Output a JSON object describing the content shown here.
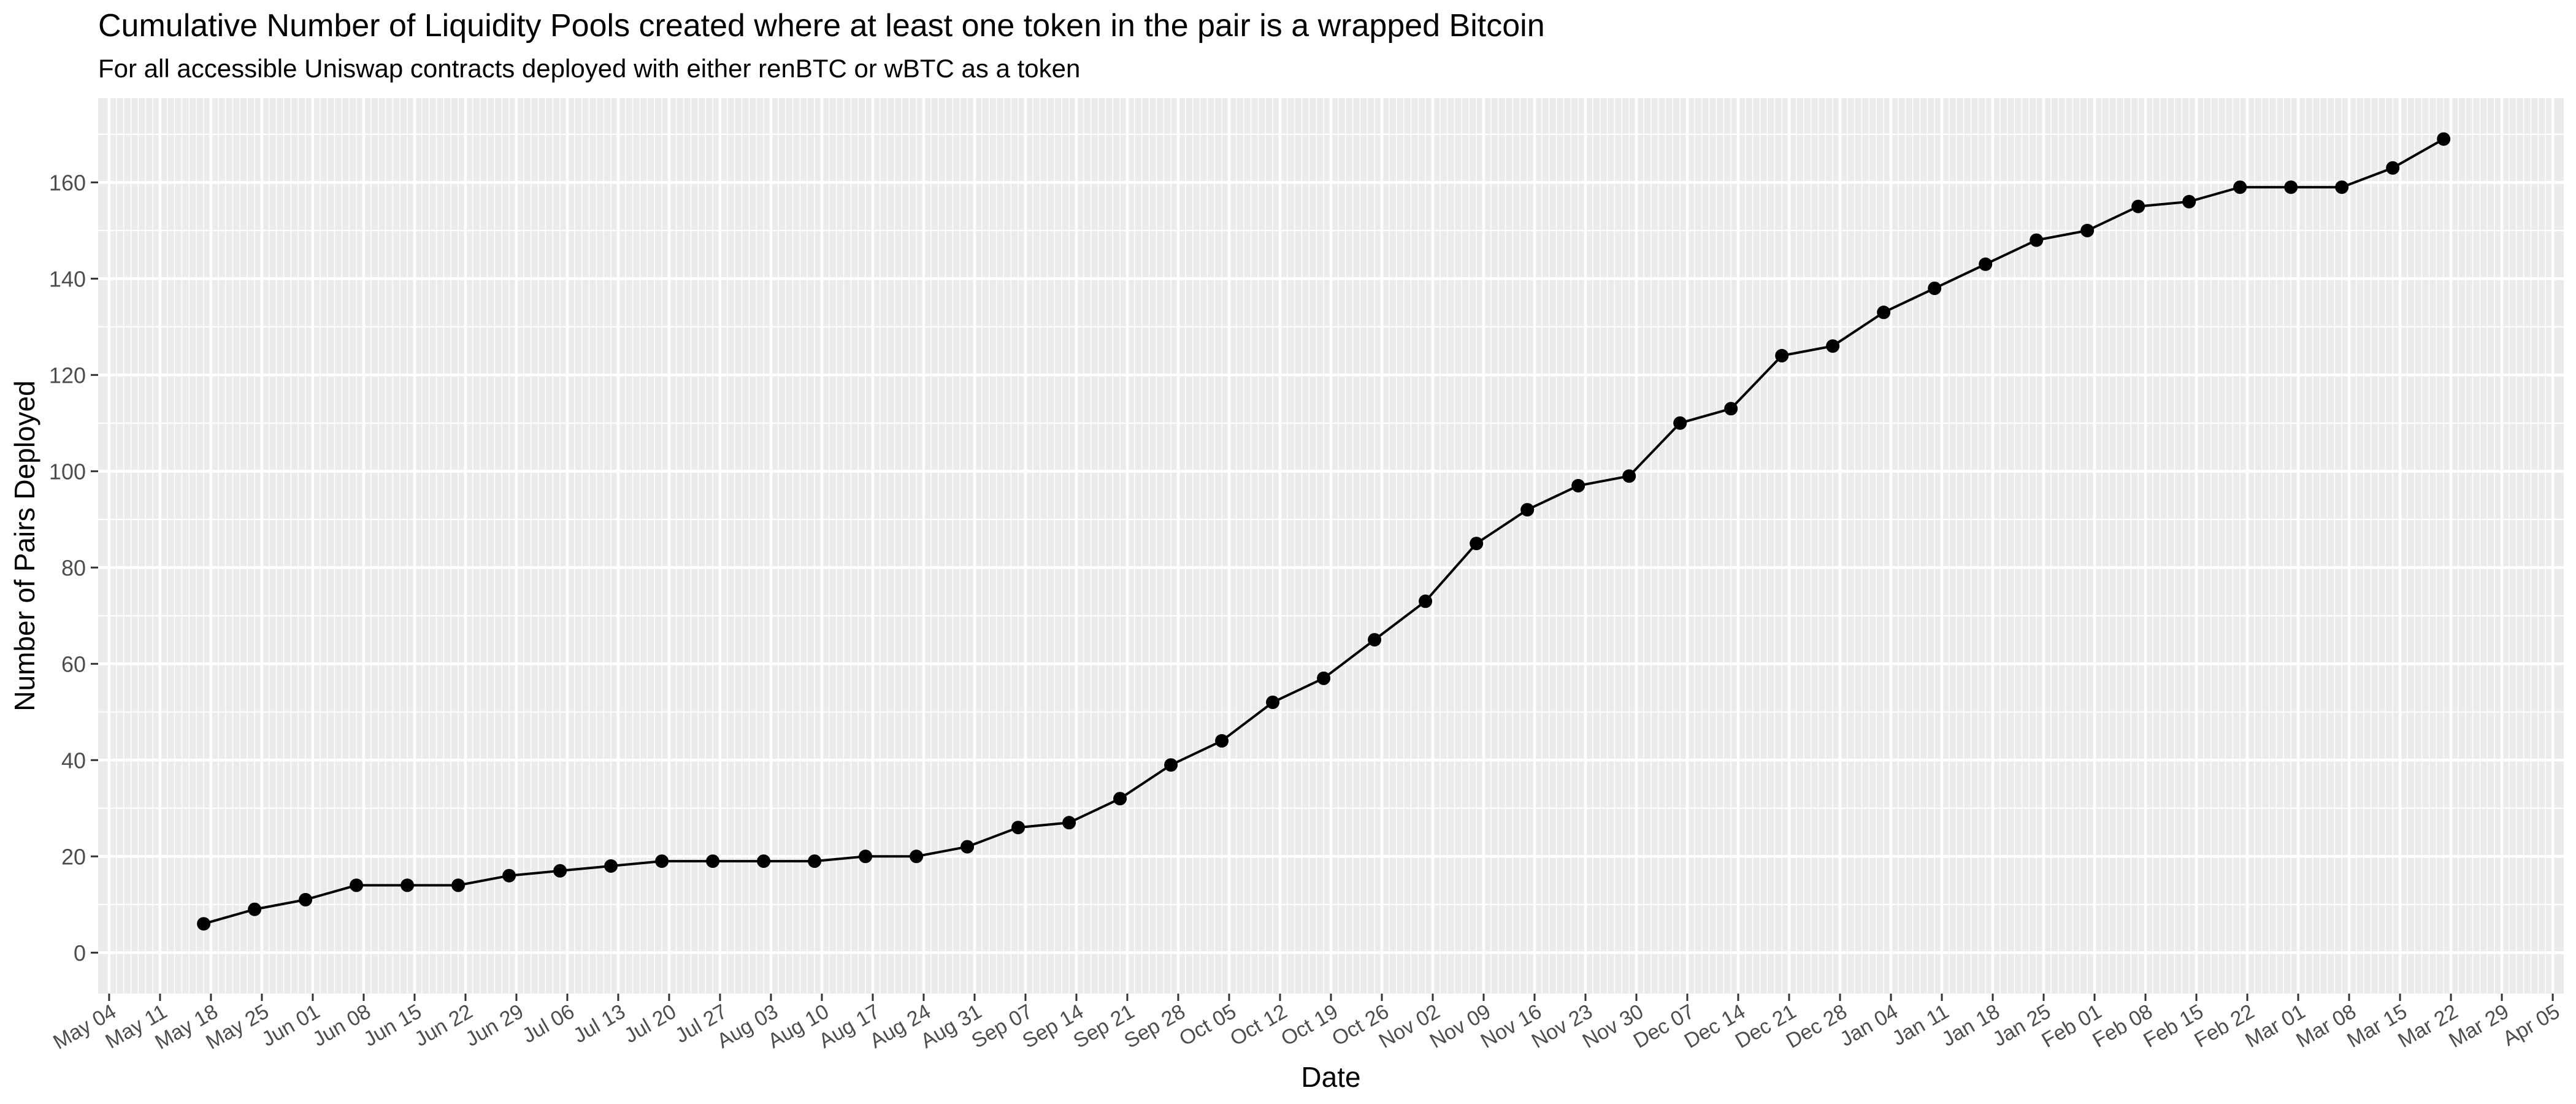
{
  "chart_data": {
    "type": "line",
    "title": "Cumulative Number of Liquidity Pools created where at least one token in the pair is a wrapped Bitcoin",
    "subtitle": "For all accessible Uniswap contracts deployed with either renBTC or wBTC as a token",
    "xlabel": "Date",
    "ylabel": "Number of Pairs Deployed",
    "ylim": [
      0,
      170
    ],
    "y_ticks": [
      0,
      20,
      40,
      60,
      80,
      100,
      120,
      140,
      160
    ],
    "xlim": [
      "May 04",
      "Apr 05"
    ],
    "x_ticks": [
      "May 04",
      "May 11",
      "May 18",
      "May 25",
      "Jun 01",
      "Jun 08",
      "Jun 15",
      "Jun 22",
      "Jun 29",
      "Jul 06",
      "Jul 13",
      "Jul 20",
      "Jul 27",
      "Aug 03",
      "Aug 10",
      "Aug 17",
      "Aug 24",
      "Aug 31",
      "Sep 07",
      "Sep 14",
      "Sep 21",
      "Sep 28",
      "Oct 05",
      "Oct 12",
      "Oct 19",
      "Oct 26",
      "Nov 02",
      "Nov 09",
      "Nov 16",
      "Nov 23",
      "Nov 30",
      "Dec 07",
      "Dec 14",
      "Dec 21",
      "Dec 28",
      "Jan 04",
      "Jan 11",
      "Jan 18",
      "Jan 25",
      "Feb 01",
      "Feb 08",
      "Feb 15",
      "Feb 22",
      "Mar 01",
      "Mar 08",
      "Mar 15",
      "Mar 22",
      "Mar 29",
      "Apr 05"
    ],
    "grid": true,
    "series": [
      {
        "x": [
          "May 17",
          "May 24",
          "May 31",
          "Jun 07",
          "Jun 14",
          "Jun 21",
          "Jun 28",
          "Jul 05",
          "Jul 12",
          "Jul 19",
          "Jul 26",
          "Aug 02",
          "Aug 09",
          "Aug 16",
          "Aug 23",
          "Aug 30",
          "Sep 06",
          "Sep 13",
          "Sep 20",
          "Sep 27",
          "Oct 04",
          "Oct 11",
          "Oct 18",
          "Oct 25",
          "Nov 01",
          "Nov 08",
          "Nov 15",
          "Nov 22",
          "Nov 29",
          "Dec 06",
          "Dec 13",
          "Dec 20",
          "Dec 27",
          "Jan 03",
          "Jan 10",
          "Jan 17",
          "Jan 24",
          "Jan 31",
          "Feb 07",
          "Feb 14",
          "Feb 21",
          "Feb 28",
          "Mar 07",
          "Mar 14",
          "Mar 21"
        ],
        "values": [
          6,
          9,
          11,
          14,
          14,
          14,
          16,
          17,
          18,
          19,
          19,
          19,
          19,
          20,
          20,
          22,
          26,
          27,
          32,
          39,
          44,
          52,
          57,
          65,
          73,
          85,
          92,
          97,
          99,
          110,
          113,
          124,
          126,
          133,
          138,
          143,
          148,
          150,
          155,
          156,
          159,
          159,
          159,
          163,
          169
        ]
      }
    ]
  }
}
